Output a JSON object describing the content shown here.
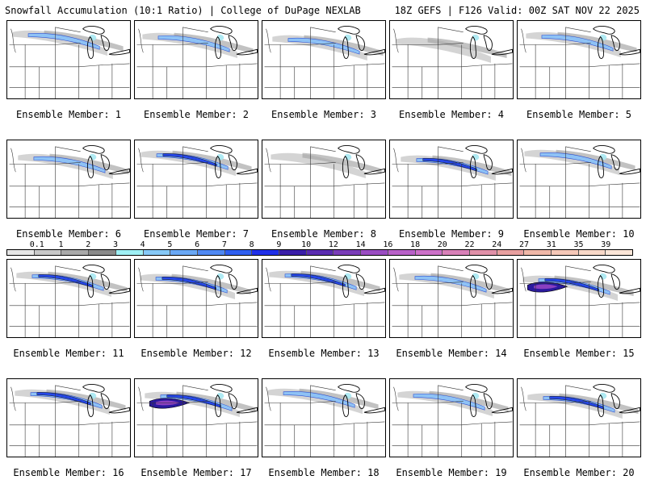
{
  "header": {
    "title_left": "Snowfall Accumulation (10:1 Ratio) | College of DuPage NEXLAB",
    "title_right": "18Z GEFS | F126 Valid: 00Z SAT NOV 22 2025"
  },
  "colorbar": {
    "labels": [
      "0.1",
      "1",
      "2",
      "3",
      "4",
      "5",
      "6",
      "7",
      "8",
      "9",
      "10",
      "12",
      "14",
      "16",
      "18",
      "20",
      "22",
      "24",
      "27",
      "31",
      "35",
      "39"
    ],
    "colors": [
      "#e6e6e6",
      "#c8c8c8",
      "#a9a9a9",
      "#8a8a8a",
      "#9ff0f5",
      "#86c9f7",
      "#6aa8f5",
      "#4f88f2",
      "#2f5ff0",
      "#1f2fe8",
      "#3a1ea8",
      "#5a2bb0",
      "#7a3cb8",
      "#9a4cc2",
      "#b860c8",
      "#cc70c8",
      "#d880b8",
      "#e090a8",
      "#e8a0a0",
      "#f0b8a8",
      "#f5c8b8",
      "#f8d8c8",
      "#fbe6d8"
    ]
  },
  "panels": [
    {
      "label": "Ensemble Member: 1",
      "intensity": 2
    },
    {
      "label": "Ensemble Member: 2",
      "intensity": 2
    },
    {
      "label": "Ensemble Member: 3",
      "intensity": 2
    },
    {
      "label": "Ensemble Member: 4",
      "intensity": 1
    },
    {
      "label": "Ensemble Member: 5",
      "intensity": 2
    },
    {
      "label": "Ensemble Member: 6",
      "intensity": 2
    },
    {
      "label": "Ensemble Member: 7",
      "intensity": 3
    },
    {
      "label": "Ensemble Member: 8",
      "intensity": 1
    },
    {
      "label": "Ensemble Member: 9",
      "intensity": 3
    },
    {
      "label": "Ensemble Member: 10",
      "intensity": 2
    },
    {
      "label": "Ensemble Member: 11",
      "intensity": 3
    },
    {
      "label": "Ensemble Member: 12",
      "intensity": 3
    },
    {
      "label": "Ensemble Member: 13",
      "intensity": 3
    },
    {
      "label": "Ensemble Member: 14",
      "intensity": 2
    },
    {
      "label": "Ensemble Member: 15",
      "intensity": 4
    },
    {
      "label": "Ensemble Member: 16",
      "intensity": 3
    },
    {
      "label": "Ensemble Member: 17",
      "intensity": 4
    },
    {
      "label": "Ensemble Member: 18",
      "intensity": 2
    },
    {
      "label": "Ensemble Member: 19",
      "intensity": 2
    },
    {
      "label": "Ensemble Member: 20",
      "intensity": 3
    }
  ]
}
